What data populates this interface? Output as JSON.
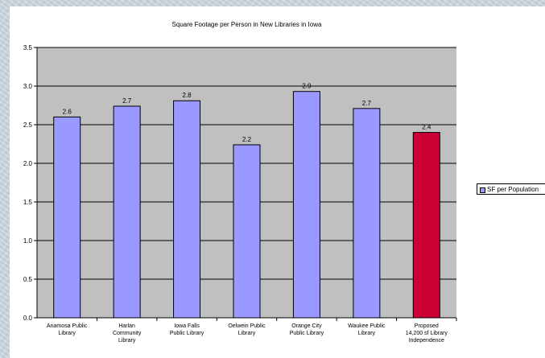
{
  "colors": {
    "plot_background": "#c0c0c0",
    "bar_default": "#9999ff",
    "bar_highlight": "#cc0033",
    "gridline": "#000000"
  },
  "chart_data": {
    "type": "bar",
    "title": "Square Footage per Person in New Libraries in Iowa",
    "xlabel": "",
    "ylabel": "",
    "ylim": [
      0,
      3.5
    ],
    "yticks": [
      "0.0",
      "0.5",
      "1.0",
      "1.5",
      "2.0",
      "2.5",
      "3.0",
      "3.5"
    ],
    "grid": true,
    "legend_position": "right",
    "categories": [
      [
        "Anamosa Public",
        "Library"
      ],
      [
        "Harlan",
        "Community",
        "Library"
      ],
      [
        "Iowa Falls",
        "Public Library"
      ],
      [
        "Oelwein Public",
        "Library"
      ],
      [
        "Orange City",
        "Public Library"
      ],
      [
        "Waukee Public",
        "Library"
      ],
      [
        "Proposed",
        "14,200 sf Library",
        "Independence"
      ]
    ],
    "series": [
      {
        "name": "SF per Population",
        "values": [
          2.6,
          2.74,
          2.81,
          2.24,
          2.93,
          2.71,
          2.4
        ],
        "labels": [
          "2.6",
          "2.7",
          "2.8",
          "2.2",
          "2.9",
          "2.7",
          "2.4"
        ],
        "highlight_index": 6
      }
    ]
  }
}
